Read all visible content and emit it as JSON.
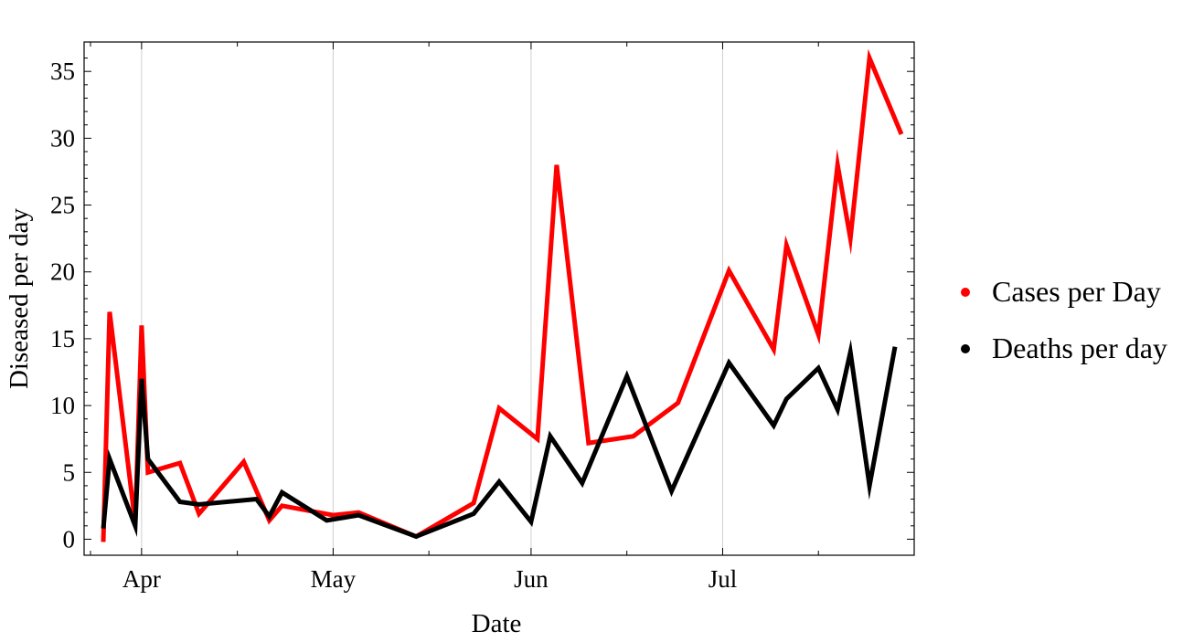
{
  "chart_data": {
    "type": "line",
    "xlabel": "Date",
    "ylabel": "Diseased per day",
    "x_axis_type": "date",
    "x_ticks": [
      {
        "date": "2020-04-01",
        "label": "Apr"
      },
      {
        "date": "2020-05-01",
        "label": "May"
      },
      {
        "date": "2020-06-01",
        "label": "Jun"
      },
      {
        "date": "2020-07-01",
        "label": "Jul"
      }
    ],
    "xlim": [
      "2020-03-23",
      "2020-07-31"
    ],
    "ylim": [
      -1.2,
      37.2
    ],
    "y_ticks": [
      0,
      5,
      10,
      15,
      20,
      25,
      30,
      35
    ],
    "grid": "vertical lines at month ticks",
    "legend_position": "right",
    "series": [
      {
        "name": "Cases per Day",
        "color": "#ff0000",
        "points": [
          [
            "2020-03-26",
            -0.2
          ],
          [
            "2020-03-27",
            17
          ],
          [
            "2020-03-31",
            1.2
          ],
          [
            "2020-04-01",
            16
          ],
          [
            "2020-04-02",
            5
          ],
          [
            "2020-04-07",
            5.7
          ],
          [
            "2020-04-10",
            1.9
          ],
          [
            "2020-04-17",
            5.8
          ],
          [
            "2020-04-21",
            1.4
          ],
          [
            "2020-04-23",
            2.5
          ],
          [
            "2020-05-01",
            1.8
          ],
          [
            "2020-05-05",
            2
          ],
          [
            "2020-05-14",
            0.2
          ],
          [
            "2020-05-23",
            2.7
          ],
          [
            "2020-05-27",
            9.8
          ],
          [
            "2020-06-02",
            7.5
          ],
          [
            "2020-06-05",
            28
          ],
          [
            "2020-06-10",
            7.2
          ],
          [
            "2020-06-17",
            7.7
          ],
          [
            "2020-06-24",
            10.2
          ],
          [
            "2020-07-02",
            20.1
          ],
          [
            "2020-07-09",
            14.2
          ],
          [
            "2020-07-11",
            22
          ],
          [
            "2020-07-16",
            15.3
          ],
          [
            "2020-07-19",
            28
          ],
          [
            "2020-07-21",
            22.5
          ],
          [
            "2020-07-24",
            36
          ],
          [
            "2020-07-29",
            30.3
          ]
        ]
      },
      {
        "name": "Deaths per day",
        "color": "#000000",
        "points": [
          [
            "2020-03-26",
            0.8
          ],
          [
            "2020-03-27",
            6
          ],
          [
            "2020-03-31",
            1
          ],
          [
            "2020-04-01",
            12
          ],
          [
            "2020-04-02",
            6
          ],
          [
            "2020-04-07",
            2.8
          ],
          [
            "2020-04-10",
            2.6
          ],
          [
            "2020-04-19",
            3
          ],
          [
            "2020-04-21",
            1.7
          ],
          [
            "2020-04-23",
            3.5
          ],
          [
            "2020-04-30",
            1.4
          ],
          [
            "2020-05-05",
            1.8
          ],
          [
            "2020-05-14",
            0.2
          ],
          [
            "2020-05-23",
            1.9
          ],
          [
            "2020-05-27",
            4.3
          ],
          [
            "2020-06-01",
            1.3
          ],
          [
            "2020-06-04",
            7.7
          ],
          [
            "2020-06-09",
            4.2
          ],
          [
            "2020-06-16",
            12.2
          ],
          [
            "2020-06-23",
            3.6
          ],
          [
            "2020-07-02",
            13.2
          ],
          [
            "2020-07-09",
            8.5
          ],
          [
            "2020-07-11",
            10.5
          ],
          [
            "2020-07-16",
            12.8
          ],
          [
            "2020-07-19",
            9.7
          ],
          [
            "2020-07-21",
            14
          ],
          [
            "2020-07-24",
            4
          ],
          [
            "2020-07-28",
            14.4
          ]
        ]
      }
    ]
  }
}
